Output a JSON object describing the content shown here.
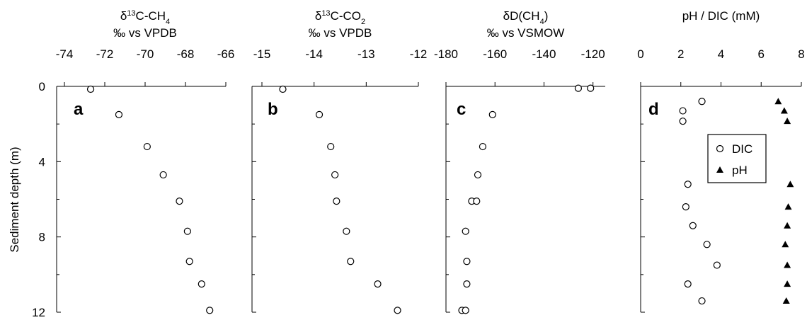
{
  "y_axis": {
    "label": "Sediment depth (m)",
    "ylim": [
      0,
      12
    ],
    "ticks": [
      0,
      4,
      8,
      12
    ],
    "tick_labels": [
      "0",
      "4",
      "8",
      "12"
    ],
    "inverted": true
  },
  "chart_data": [
    {
      "type": "scatter",
      "panel": "a",
      "title_html": "δ<tspan baseline-shift=\"super\" font-size=\"11\">13</tspan>C-CH<tspan baseline-shift=\"sub\" font-size=\"11\">4</tspan>",
      "title_unit": "‰ vs VPDB",
      "xlim": [
        -74,
        -66
      ],
      "x_ticks": [
        -74,
        -72,
        -70,
        -68,
        -66
      ],
      "x_tick_labels": [
        "-74",
        "-72",
        "-70",
        "-68",
        "-66"
      ],
      "series": [
        {
          "marker": "circle",
          "points": [
            [
              -72.7,
              0.15
            ],
            [
              -71.3,
              1.5
            ],
            [
              -69.9,
              3.2
            ],
            [
              -69.1,
              4.7
            ],
            [
              -68.3,
              6.1
            ],
            [
              -67.9,
              7.7
            ],
            [
              -67.8,
              9.3
            ],
            [
              -67.2,
              10.5
            ],
            [
              -66.8,
              11.9
            ]
          ]
        }
      ]
    },
    {
      "type": "scatter",
      "panel": "b",
      "title_html": "δ<tspan baseline-shift=\"super\" font-size=\"11\">13</tspan>C-CO<tspan baseline-shift=\"sub\" font-size=\"11\">2</tspan>",
      "title_unit": "‰ vs VPDB",
      "xlim": [
        -15,
        -12
      ],
      "x_ticks": [
        -15,
        -14,
        -13,
        -12
      ],
      "x_tick_labels": [
        "-15",
        "-14",
        "-13",
        "-12"
      ],
      "series": [
        {
          "marker": "circle",
          "points": [
            [
              -14.6,
              0.15
            ],
            [
              -13.9,
              1.5
            ],
            [
              -13.68,
              3.2
            ],
            [
              -13.6,
              4.7
            ],
            [
              -13.57,
              6.1
            ],
            [
              -13.38,
              7.7
            ],
            [
              -13.3,
              9.3
            ],
            [
              -12.78,
              10.5
            ],
            [
              -12.4,
              11.9
            ]
          ]
        }
      ]
    },
    {
      "type": "scatter",
      "panel": "c",
      "title_html": "δD(CH<tspan baseline-shift=\"sub\" font-size=\"11\">4</tspan>)",
      "title_unit": "‰ vs VSMOW",
      "xlim": [
        -180,
        -115
      ],
      "x_ticks": [
        -180,
        -160,
        -140,
        -120
      ],
      "x_tick_labels": [
        "-180",
        "-160",
        "-140",
        "-120"
      ],
      "series": [
        {
          "marker": "circle",
          "points": [
            [
              -126,
              0.1
            ],
            [
              -121,
              0.1
            ],
            [
              -161,
              1.5
            ],
            [
              -165,
              3.2
            ],
            [
              -167,
              4.7
            ],
            [
              -169.5,
              6.1
            ],
            [
              -167.5,
              6.1
            ],
            [
              -172,
              7.7
            ],
            [
              -171.5,
              9.3
            ],
            [
              -171.5,
              10.5
            ],
            [
              -173.5,
              11.9
            ],
            [
              -172,
              11.9
            ]
          ]
        }
      ]
    },
    {
      "type": "scatter",
      "panel": "d",
      "title_html": "pH / DIC (mM)",
      "title_unit": "",
      "xlim": [
        0,
        8
      ],
      "x_ticks": [
        0,
        2,
        4,
        6,
        8
      ],
      "x_tick_labels": [
        "0",
        "2",
        "4",
        "6",
        "8"
      ],
      "legend": {
        "position": "right",
        "entries": [
          {
            "label": "DIC",
            "marker": "circle"
          },
          {
            "label": "pH",
            "marker": "triangle"
          }
        ]
      },
      "series": [
        {
          "name": "DIC",
          "marker": "circle",
          "points": [
            [
              3.05,
              0.8
            ],
            [
              2.1,
              1.3
            ],
            [
              2.1,
              1.85
            ],
            [
              2.35,
              5.2
            ],
            [
              2.25,
              6.4
            ],
            [
              2.6,
              7.4
            ],
            [
              3.3,
              8.4
            ],
            [
              3.8,
              9.5
            ],
            [
              2.35,
              10.5
            ],
            [
              3.05,
              11.4
            ]
          ]
        },
        {
          "name": "pH",
          "marker": "triangle",
          "points": [
            [
              6.85,
              0.8
            ],
            [
              7.15,
              1.3
            ],
            [
              7.3,
              1.85
            ],
            [
              7.45,
              5.2
            ],
            [
              7.35,
              6.4
            ],
            [
              7.3,
              7.4
            ],
            [
              7.2,
              8.4
            ],
            [
              7.3,
              9.5
            ],
            [
              7.3,
              10.5
            ],
            [
              7.25,
              11.4
            ]
          ]
        }
      ]
    }
  ]
}
